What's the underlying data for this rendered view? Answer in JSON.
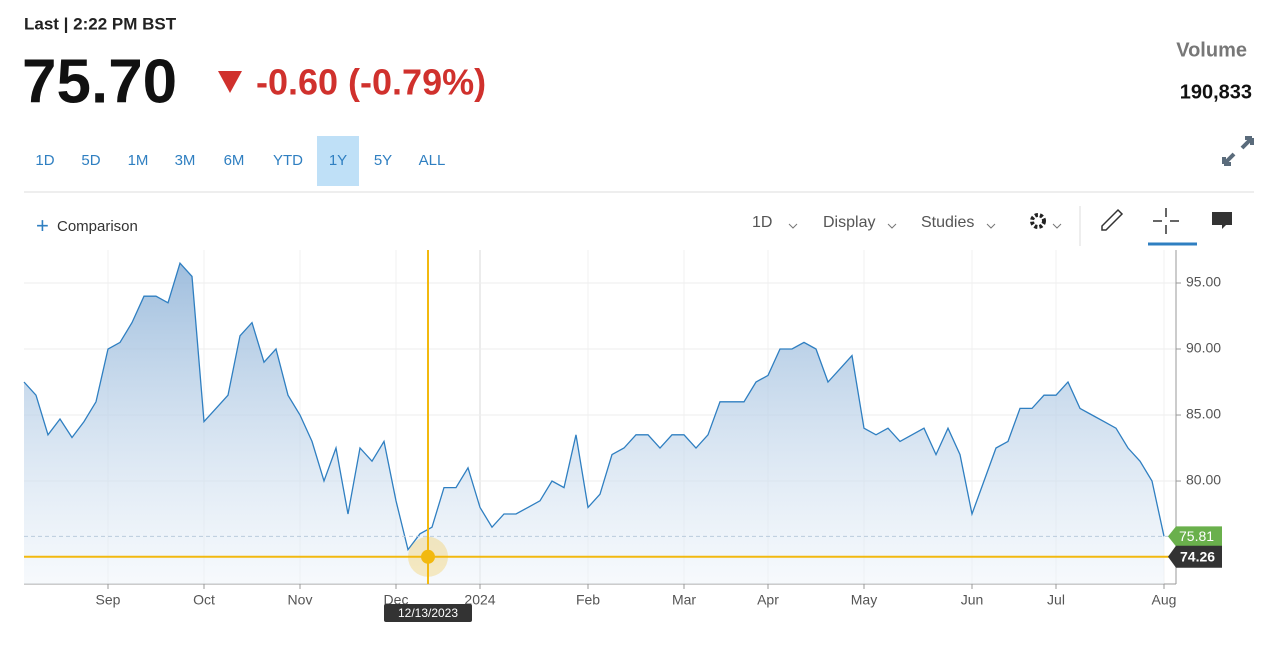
{
  "header": {
    "last_label": "Last | 2:22 PM BST",
    "price": "75.70",
    "change": "-0.60 (-0.79%)",
    "volume_label": "Volume",
    "volume": "190,833"
  },
  "ranges": [
    "1D",
    "5D",
    "1M",
    "3M",
    "6M",
    "YTD",
    "1Y",
    "5Y",
    "ALL"
  ],
  "active_range": "1Y",
  "toolbar": {
    "comparison": "Comparison",
    "interval": "1D",
    "display": "Display",
    "studies": "Studies"
  },
  "chart_data": {
    "type": "area",
    "categories": [
      null,
      null,
      null,
      null,
      null,
      null,
      null,
      "Sep",
      null,
      null,
      null,
      null,
      null,
      null,
      null,
      "Oct",
      null,
      null,
      null,
      null,
      null,
      null,
      null,
      "Nov",
      null,
      null,
      null,
      null,
      null,
      null,
      null,
      "Dec",
      null,
      null,
      null,
      null,
      null,
      null,
      "2024",
      null,
      null,
      null,
      null,
      null,
      null,
      null,
      null,
      "Feb",
      null,
      null,
      null,
      null,
      null,
      null,
      null,
      "Mar",
      null,
      null,
      null,
      null,
      null,
      null,
      "Apr",
      null,
      null,
      null,
      null,
      null,
      null,
      null,
      "May",
      null,
      null,
      null,
      null,
      null,
      null,
      null,
      null,
      "Jun",
      null,
      null,
      null,
      null,
      null,
      null,
      "Jul",
      null,
      null,
      null,
      null,
      null,
      null,
      null,
      null,
      "Aug"
    ],
    "values": [
      87.5,
      86.5,
      83.5,
      84.7,
      83.3,
      84.5,
      86,
      90,
      90.5,
      92,
      94,
      94,
      93.5,
      96.5,
      95.5,
      84.5,
      85.5,
      86.5,
      91,
      92,
      89,
      90,
      86.5,
      85,
      83,
      80,
      82.5,
      77.5,
      82.5,
      81.5,
      83,
      78.5,
      74.8,
      76,
      76.5,
      79.5,
      79.5,
      81,
      78,
      76.5,
      77.5,
      77.5,
      78,
      78.5,
      80,
      79.5,
      83.5,
      78,
      79,
      82,
      82.5,
      83.5,
      83.5,
      82.5,
      83.5,
      83.5,
      82.5,
      83.5,
      86,
      86,
      86,
      87.5,
      88,
      90,
      90,
      90.5,
      90,
      87.5,
      88.5,
      89.5,
      84,
      83.5,
      84,
      83,
      83.5,
      84,
      82,
      84,
      82,
      77.5,
      80,
      82.5,
      83,
      85.5,
      85.5,
      86.5,
      86.5,
      87.5,
      85.5,
      85,
      84.5,
      84,
      82.5,
      81.5,
      80,
      75.81
    ],
    "color": "#2f7fc1",
    "ylim": [
      72.2,
      97.5
    ],
    "yticks": [
      {
        "value": 80,
        "label": "80.00"
      },
      {
        "value": 85,
        "label": "85.00"
      },
      {
        "value": 90,
        "label": "90.00"
      },
      {
        "value": 95,
        "label": "95.00"
      }
    ],
    "grid": true,
    "crosshair": {
      "date": "12/13/2023",
      "value": 74.26
    }
  }
}
